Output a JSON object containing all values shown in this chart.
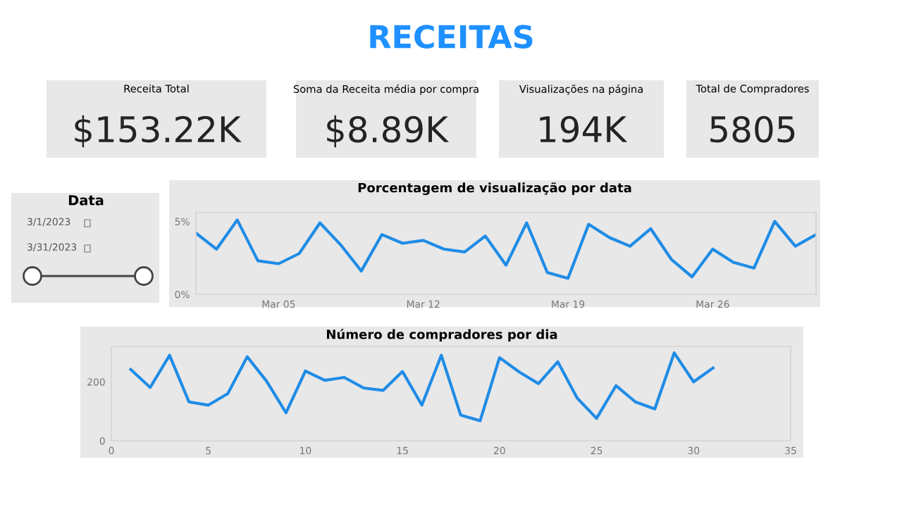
{
  "chart_data": [
    {
      "type": "other",
      "title": "RECEITAS",
      "categories": [
        "Receita Total",
        "Soma da Receita média por compra",
        "Visualizações na página",
        "Total de Compradores"
      ],
      "value_labels": [
        "$153.22K",
        "$8.89K",
        "194K",
        "5805"
      ]
    },
    {
      "type": "other",
      "title": "Data",
      "annotations": [
        "3/1/2023",
        "3/31/2023"
      ]
    },
    {
      "type": "line",
      "title": "Porcentagem de visualização por data",
      "x": [
        "2023-03-01",
        "2023-03-02",
        "2023-03-03",
        "2023-03-04",
        "2023-03-05",
        "2023-03-06",
        "2023-03-07",
        "2023-03-08",
        "2023-03-09",
        "2023-03-10",
        "2023-03-11",
        "2023-03-12",
        "2023-03-13",
        "2023-03-14",
        "2023-03-15",
        "2023-03-16",
        "2023-03-17",
        "2023-03-18",
        "2023-03-19",
        "2023-03-20",
        "2023-03-21",
        "2023-03-22",
        "2023-03-23",
        "2023-03-24",
        "2023-03-25",
        "2023-03-26",
        "2023-03-27",
        "2023-03-28",
        "2023-03-29",
        "2023-03-30",
        "2023-03-31"
      ],
      "series": [
        {
          "color": "#1f8ce6",
          "values": [
            4.2,
            3.1,
            5.1,
            2.3,
            2.1,
            2.8,
            4.9,
            3.4,
            1.6,
            4.1,
            3.5,
            3.7,
            3.1,
            2.9,
            4.0,
            2.0,
            4.9,
            1.5,
            1.1,
            4.8,
            3.9,
            3.3,
            4.5,
            2.4,
            1.2,
            3.1,
            2.2,
            1.8,
            5.0,
            3.3,
            4.1
          ]
        }
      ],
      "xlim": [
        "2023-03-01",
        "2023-03-31"
      ],
      "xticks": [
        {
          "value": "2023-03-05",
          "label": "Mar 05"
        },
        {
          "value": "2023-03-12",
          "label": "Mar 12"
        },
        {
          "value": "2023-03-19",
          "label": "Mar 19"
        },
        {
          "value": "2023-03-26",
          "label": "Mar 26"
        }
      ],
      "ylim": [
        0,
        5.6
      ],
      "yticks": [
        {
          "value": 0,
          "label": "0%"
        },
        {
          "value": 5,
          "label": "5%"
        }
      ],
      "grid": false
    },
    {
      "type": "line",
      "title": "Número de compradores por dia",
      "x": [
        1,
        2,
        3,
        4,
        5,
        6,
        7,
        8,
        9,
        10,
        11,
        12,
        13,
        14,
        15,
        16,
        17,
        18,
        19,
        20,
        21,
        22,
        23,
        24,
        25,
        26,
        27,
        28,
        29,
        30,
        31
      ],
      "series": [
        {
          "color": "#1f8ce6",
          "values": [
            242,
            181,
            290,
            132,
            121,
            160,
            285,
            202,
            95,
            237,
            205,
            215,
            179,
            171,
            235,
            121,
            290,
            87,
            68,
            282,
            234,
            194,
            268,
            145,
            76,
            187,
            132,
            108,
            298,
            200,
            247
          ]
        }
      ],
      "xlim": [
        0,
        35
      ],
      "xticks": [
        0,
        5,
        10,
        15,
        20,
        25,
        30,
        35
      ],
      "ylim": [
        0,
        320
      ],
      "yticks": [
        0,
        200
      ],
      "grid": false
    }
  ]
}
